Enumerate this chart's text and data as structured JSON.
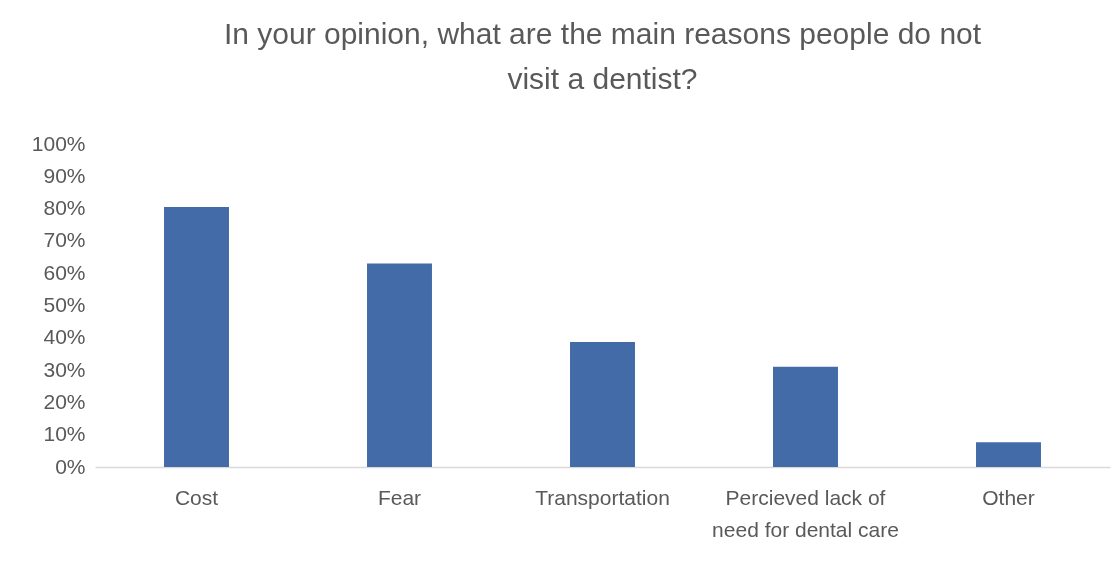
{
  "chart_data": {
    "type": "bar",
    "title": "In your opinion, what are the main reasons people do not visit a dentist?",
    "categories": [
      "Cost",
      "Fear",
      "Transportation",
      "Percieved lack of need for dental care",
      "Other"
    ],
    "values": [
      80.5,
      63,
      38.7,
      31,
      7.7
    ],
    "color": "#436ba8",
    "ylim": [
      0,
      100
    ],
    "yticks": [
      {
        "value": 0,
        "label": "0%"
      },
      {
        "value": 10,
        "label": "10%"
      },
      {
        "value": 20,
        "label": "20%"
      },
      {
        "value": 30,
        "label": "30%"
      },
      {
        "value": 40,
        "label": "40%"
      },
      {
        "value": 50,
        "label": "50%"
      },
      {
        "value": 60,
        "label": "60%"
      },
      {
        "value": 70,
        "label": "70%"
      },
      {
        "value": 80,
        "label": "80%"
      },
      {
        "value": 90,
        "label": "90%"
      },
      {
        "value": 100,
        "label": "100%"
      }
    ],
    "grid": false
  }
}
